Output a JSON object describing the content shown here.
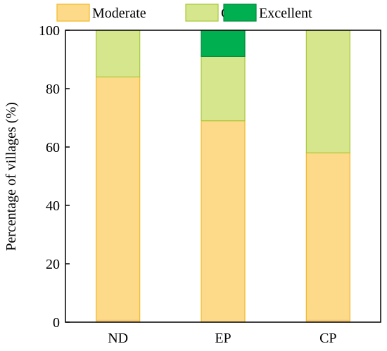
{
  "chart_data": {
    "type": "bar",
    "stacked": true,
    "categories": [
      "ND",
      "EP",
      "CP"
    ],
    "series": [
      {
        "name": "Moderate",
        "values": [
          84,
          69,
          58
        ],
        "color": "#FDD98A",
        "stroke": "#F2B928"
      },
      {
        "name": "Good",
        "values": [
          16,
          22,
          42
        ],
        "color": "#D5E68C",
        "stroke": "#A9C838"
      },
      {
        "name": "Excellent",
        "values": [
          0,
          9,
          0
        ],
        "color": "#00B050",
        "stroke": "#008A3A"
      }
    ],
    "baseline_segment": {
      "values": [
        0.8,
        0,
        0.8
      ],
      "color": "#F6C978"
    },
    "ylabel": "Percentage of villages (%)",
    "ylim": [
      0,
      100
    ],
    "yticks": [
      0,
      20,
      40,
      60,
      80,
      100
    ],
    "grid": false,
    "legend_position": "top"
  }
}
